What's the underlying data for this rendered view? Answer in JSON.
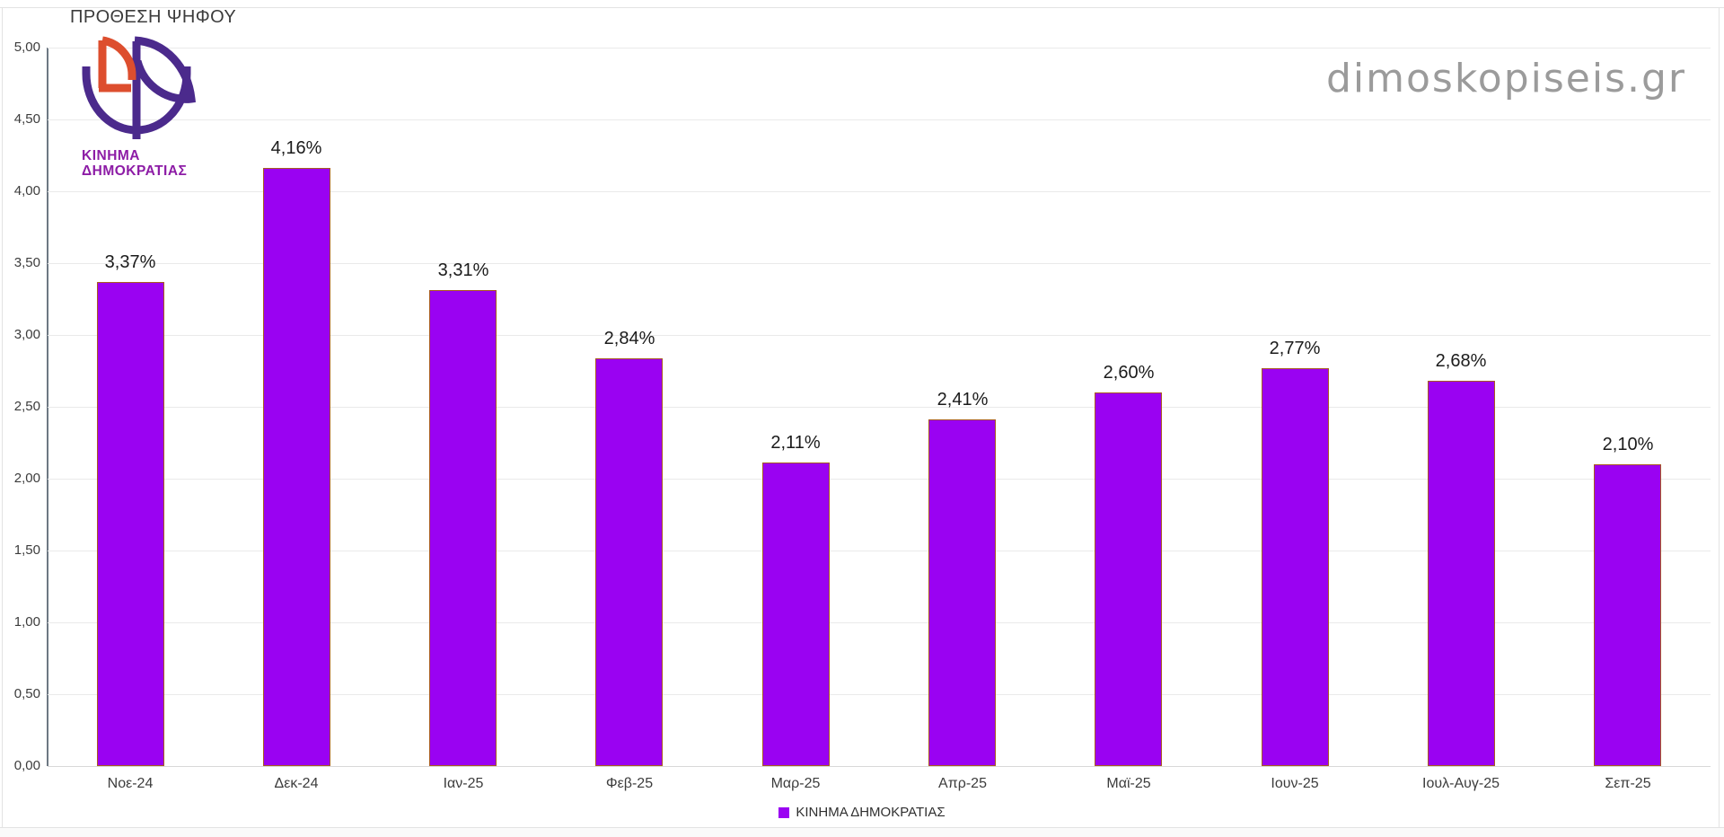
{
  "header": {
    "title": "ΠΡΟΘΕΣΗ ΨΗΦΟΥ"
  },
  "watermark": {
    "text": "dimoskopiseis.gr"
  },
  "logo": {
    "line1": "ΚΙΝΗΜΑ",
    "line2": "ΔΗΜΟΚΡΑΤΙΑΣ"
  },
  "legend": {
    "label": "ΚΙΝΗΜΑ ΔΗΜΟΚΡΑΤΙΑΣ"
  },
  "colors": {
    "bar_fill": "#9a02f2",
    "bar_border": "#a85a20",
    "axis": "#6d7883",
    "gridline": "#eaeaea",
    "logo_purple": "#4b2a8c",
    "logo_orange": "#dd4e2e",
    "logo_text": "#8d1ca6",
    "watermark": "#9b9b9b"
  },
  "chart_data": {
    "type": "bar",
    "title": "ΠΡΟΘΕΣΗ ΨΗΦΟΥ",
    "series_name": "ΚΙΝΗΜΑ ΔΗΜΟΚΡΑΤΙΑΣ",
    "categories": [
      "Νοε-24",
      "Δεκ-24",
      "Ιαν-25",
      "Φεβ-25",
      "Μαρ-25",
      "Απρ-25",
      "Μαϊ-25",
      "Ιουν-25",
      "Ιουλ-Αυγ-25",
      "Σεπ-25"
    ],
    "values": [
      3.37,
      4.16,
      3.31,
      2.84,
      2.11,
      2.41,
      2.6,
      2.77,
      2.68,
      2.1
    ],
    "value_labels": [
      "3,37%",
      "4,16%",
      "3,31%",
      "2,84%",
      "2,11%",
      "2,41%",
      "2,60%",
      "2,77%",
      "2,68%",
      "2,10%"
    ],
    "ylim": [
      0,
      5
    ],
    "y_tick_values": [
      0,
      0.5,
      1,
      1.5,
      2,
      2.5,
      3,
      3.5,
      4,
      4.5,
      5
    ],
    "y_tick_labels": [
      "0,00",
      "0,50",
      "1,00",
      "1,50",
      "2,00",
      "2,50",
      "3,00",
      "3,50",
      "4,00",
      "4,50",
      "5,00"
    ],
    "grid": true,
    "legend_position": "bottom",
    "unit": "%"
  }
}
